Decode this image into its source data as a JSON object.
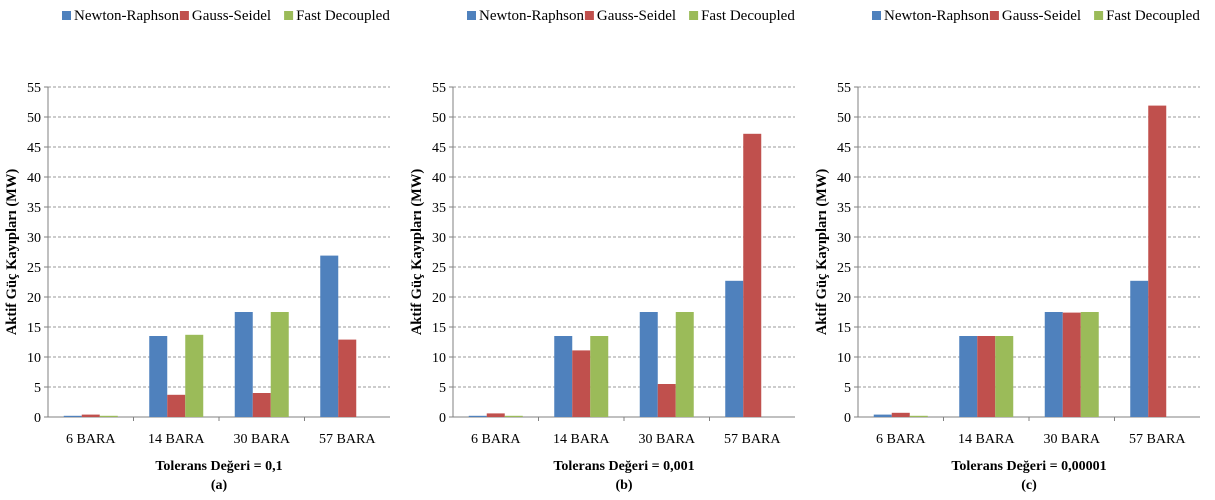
{
  "chart_data": [
    {
      "type": "bar",
      "categories": [
        "6 BARA",
        "14 BARA",
        "30 BARA",
        "57 BARA"
      ],
      "series": [
        {
          "name": "Newton-Raphson",
          "color": "#4F81BD",
          "values": [
            0.2,
            13.5,
            17.5,
            26.9
          ]
        },
        {
          "name": "Gauss-Seidel",
          "color": "#C0504D",
          "values": [
            0.4,
            3.7,
            4.0,
            12.9
          ]
        },
        {
          "name": "Fast Decoupled",
          "color": "#9BBB59",
          "values": [
            0.2,
            13.7,
            17.5,
            null
          ]
        }
      ],
      "xlabel": "Tolerans Değeri = 0,1",
      "panel_label": "(a)",
      "ylabel": "Aktif Güç Kayıpları (MW)",
      "ylim": [
        0,
        55
      ],
      "yticks": [
        0,
        5,
        10,
        15,
        20,
        25,
        30,
        35,
        40,
        45,
        50,
        55
      ],
      "grid": true,
      "legend": "top"
    },
    {
      "type": "bar",
      "categories": [
        "6 BARA",
        "14 BARA",
        "30 BARA",
        "57 BARA"
      ],
      "series": [
        {
          "name": "Newton-Raphson",
          "color": "#4F81BD",
          "values": [
            0.2,
            13.5,
            17.5,
            22.7
          ]
        },
        {
          "name": "Gauss-Seidel",
          "color": "#C0504D",
          "values": [
            0.6,
            11.1,
            5.5,
            47.2
          ]
        },
        {
          "name": "Fast Decoupled",
          "color": "#9BBB59",
          "values": [
            0.2,
            13.5,
            17.5,
            null
          ]
        }
      ],
      "xlabel": "Tolerans Değeri = 0,001",
      "panel_label": "(b)",
      "ylabel": "Aktif Güç Kayıpları (MW)",
      "ylim": [
        0,
        55
      ],
      "yticks": [
        0,
        5,
        10,
        15,
        20,
        25,
        30,
        35,
        40,
        45,
        50,
        55
      ],
      "grid": true,
      "legend": "top"
    },
    {
      "type": "bar",
      "categories": [
        "6 BARA",
        "14 BARA",
        "30 BARA",
        "57 BARA"
      ],
      "series": [
        {
          "name": "Newton-Raphson",
          "color": "#4F81BD",
          "values": [
            0.4,
            13.5,
            17.5,
            22.7
          ]
        },
        {
          "name": "Gauss-Seidel",
          "color": "#C0504D",
          "values": [
            0.7,
            13.5,
            17.4,
            51.9
          ]
        },
        {
          "name": "Fast Decoupled",
          "color": "#9BBB59",
          "values": [
            0.2,
            13.5,
            17.5,
            null
          ]
        }
      ],
      "xlabel": "Tolerans Değeri = 0,00001",
      "panel_label": "(c)",
      "ylabel": "Aktif Güç Kayıpları (MW)",
      "ylim": [
        0,
        55
      ],
      "yticks": [
        0,
        5,
        10,
        15,
        20,
        25,
        30,
        35,
        40,
        45,
        50,
        55
      ],
      "grid": true,
      "legend": "top"
    }
  ]
}
